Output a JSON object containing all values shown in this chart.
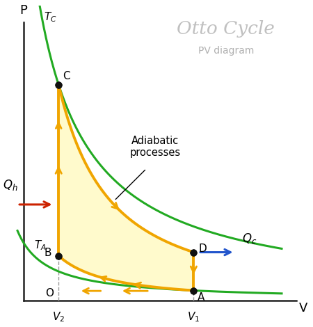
{
  "title": "Otto Cycle",
  "subtitle": "PV diagram",
  "title_color": "#c0c0c0",
  "subtitle_color": "#b0b0b0",
  "bg_color": "#ffffff",
  "V1": 3.5,
  "V2": 1.2,
  "gamma": 1.4,
  "P_A": 0.12,
  "P_C": 2.6,
  "cycle_fill_color": "#fffacc",
  "adiabatic_color": "#f0a500",
  "isotherm_color": "#22aa22",
  "point_color": "#111111",
  "arrow_color_qh": "#cc2200",
  "arrow_color_qc": "#2255cc",
  "dashed_color": "#999999",
  "axis_color": "#222222",
  "xlim": [
    0.0,
    5.5
  ],
  "ylim": [
    0.0,
    3.5
  ],
  "axis_origin_x": 0.15,
  "axis_origin_y": 0.0,
  "axis_end_x": 5.3,
  "axis_end_y": 3.4
}
